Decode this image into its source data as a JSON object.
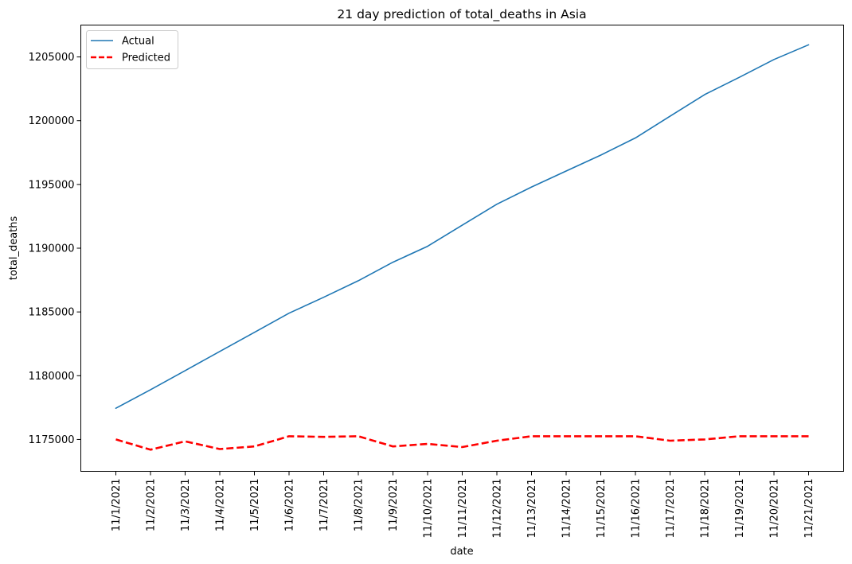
{
  "chart_data": {
    "type": "line",
    "title": "21 day prediction of total_deaths in Asia",
    "xlabel": "date",
    "ylabel": "total_deaths",
    "x": [
      "11/1/2021",
      "11/2/2021",
      "11/3/2021",
      "11/4/2021",
      "11/5/2021",
      "11/6/2021",
      "11/7/2021",
      "11/8/2021",
      "11/9/2021",
      "11/10/2021",
      "11/11/2021",
      "11/12/2021",
      "11/13/2021",
      "11/14/2021",
      "11/15/2021",
      "11/16/2021",
      "11/17/2021",
      "11/18/2021",
      "11/19/2021",
      "11/20/2021",
      "11/21/2021"
    ],
    "ylim": [
      1172500,
      1207500
    ],
    "yticks": [
      1175000,
      1180000,
      1185000,
      1190000,
      1195000,
      1200000,
      1205000
    ],
    "grid": false,
    "legend_position": "upper left",
    "series": [
      {
        "name": "Actual",
        "color": "#1f77b4",
        "style": "solid",
        "values": [
          1177450,
          1178900,
          1180400,
          1181900,
          1183400,
          1184900,
          1186150,
          1187450,
          1188900,
          1190150,
          1191800,
          1193450,
          1194800,
          1196050,
          1197300,
          1198650,
          1200350,
          1202050,
          1203400,
          1204800,
          1205950
        ]
      },
      {
        "name": "Predicted",
        "color": "#ff0000",
        "style": "dashed",
        "values": [
          1175000,
          1174200,
          1174850,
          1174250,
          1174450,
          1175250,
          1175200,
          1175250,
          1174450,
          1174650,
          1174400,
          1174900,
          1175250,
          1175250,
          1175250,
          1175250,
          1174900,
          1175000,
          1175250,
          1175250,
          1175250
        ]
      }
    ]
  }
}
